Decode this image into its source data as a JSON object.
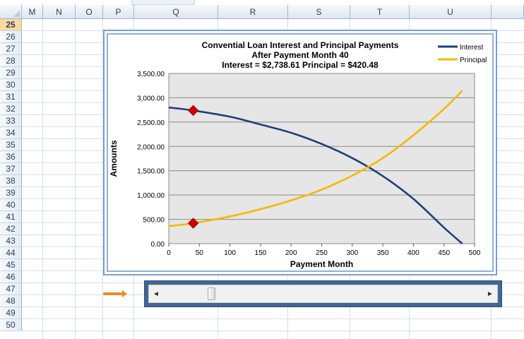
{
  "columns": [
    "M",
    "N",
    "O",
    "P",
    "Q",
    "R",
    "S",
    "T",
    "U"
  ],
  "rows": [
    "25",
    "26",
    "27",
    "28",
    "29",
    "30",
    "31",
    "32",
    "33",
    "34",
    "35",
    "36",
    "37",
    "38",
    "39",
    "40",
    "41",
    "42",
    "43",
    "44",
    "45",
    "46",
    "47",
    "48",
    "49",
    "50"
  ],
  "active_row": "25",
  "chart": {
    "title_line1": "Convential Loan Interest and Principal Payments",
    "title_line2": "After Payment Month  40",
    "title_line3": "Interest = $2,738.61      Principal = $420.48",
    "legend_interest": "Interest",
    "legend_principal": "Principal"
  },
  "colors": {
    "interest": "#1f3f7a",
    "principal": "#f5b800",
    "marker": "#d40000",
    "plot_bg": "#e6e6e6",
    "accent_arrow": "#f08a24"
  },
  "slider": {
    "value": 40,
    "min": 0,
    "max": 480,
    "left_arrow": "◄",
    "right_arrow": "►"
  },
  "chart_data": {
    "type": "line",
    "title": "Convential Loan Interest and Principal Payments",
    "xlabel": "Payment Month",
    "ylabel": "Amounts",
    "xlim": [
      0,
      500
    ],
    "ylim": [
      0,
      3500
    ],
    "x_ticks": [
      "0",
      "50",
      "100",
      "150",
      "200",
      "250",
      "300",
      "350",
      "400",
      "450",
      "500"
    ],
    "y_ticks": [
      "0.00",
      "500.00",
      "1,000.00",
      "1,500.00",
      "2,000.00",
      "2,500.00",
      "3,000.00",
      "3,500.00"
    ],
    "grid": true,
    "legend_position": "top-right",
    "series": [
      {
        "name": "Interest",
        "x": [
          0,
          40,
          100,
          150,
          200,
          250,
          300,
          350,
          400,
          450,
          480
        ],
        "values": [
          2800,
          2738.61,
          2610,
          2450,
          2280,
          2050,
          1760,
          1390,
          920,
          330,
          0
        ]
      },
      {
        "name": "Principal",
        "x": [
          0,
          40,
          100,
          150,
          200,
          250,
          300,
          350,
          400,
          450,
          480
        ],
        "values": [
          360,
          420.48,
          560,
          710,
          890,
          1110,
          1400,
          1760,
          2230,
          2770,
          3150
        ]
      }
    ],
    "markers": [
      {
        "series": "Interest",
        "x": 40,
        "y": 2738.61
      },
      {
        "series": "Principal",
        "x": 40,
        "y": 420.48
      }
    ]
  }
}
